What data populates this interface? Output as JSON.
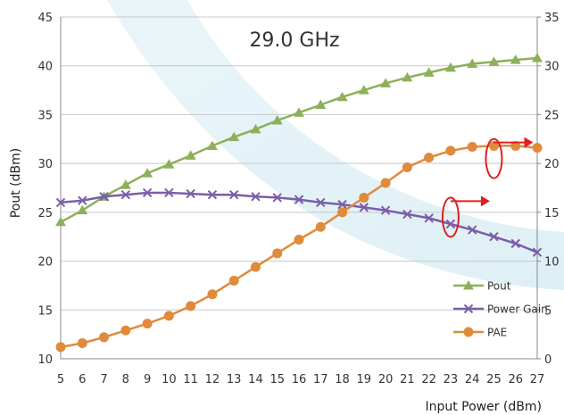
{
  "chart_data": {
    "type": "line",
    "title": "29.0 GHz",
    "xlabel": "Input Power (dBm)",
    "ylabel": "Pout (dBm)",
    "x": [
      5,
      6,
      7,
      8,
      9,
      10,
      11,
      12,
      13,
      14,
      15,
      16,
      17,
      18,
      19,
      20,
      21,
      22,
      23,
      24,
      25,
      26,
      27
    ],
    "xlim": [
      5,
      27
    ],
    "ylim": [
      10,
      45
    ],
    "y2lim": [
      0,
      35
    ],
    "yticks": [
      10,
      15,
      20,
      25,
      30,
      35,
      40,
      45
    ],
    "y2ticks": [
      0,
      5,
      10,
      15,
      20,
      25,
      30,
      35
    ],
    "y2_tick_labels": [
      "0",
      "5",
      "10",
      "15",
      "20",
      "25",
      "30",
      "35"
    ],
    "grid": true,
    "legend_position": "bottom-right",
    "series": [
      {
        "name": "Pout",
        "axis": "left",
        "color": "#8db05a",
        "marker": "triangle",
        "values": [
          24.0,
          25.2,
          26.6,
          27.8,
          29.0,
          29.9,
          30.8,
          31.8,
          32.7,
          33.5,
          34.4,
          35.2,
          36.0,
          36.8,
          37.5,
          38.2,
          38.8,
          39.3,
          39.8,
          40.2,
          40.4,
          40.6,
          40.8
        ]
      },
      {
        "name": "Power Gain",
        "axis": "left",
        "color": "#7b5ea7",
        "marker": "x",
        "values": [
          26.0,
          26.2,
          26.6,
          26.8,
          27.0,
          27.0,
          26.9,
          26.8,
          26.8,
          26.6,
          26.5,
          26.3,
          26.0,
          25.8,
          25.5,
          25.2,
          24.8,
          24.4,
          23.8,
          23.2,
          22.5,
          21.8,
          20.9
        ]
      },
      {
        "name": "PAE",
        "axis": "right",
        "color": "#e08a3c",
        "marker": "circle",
        "values": [
          1.2,
          1.6,
          2.2,
          2.9,
          3.6,
          4.4,
          5.4,
          6.6,
          8.0,
          9.4,
          10.8,
          12.2,
          13.5,
          15.0,
          16.5,
          18.0,
          19.6,
          20.6,
          21.3,
          21.7,
          21.8,
          21.8,
          21.6
        ]
      }
    ],
    "annotations": [
      {
        "type": "ellipse-arrow",
        "x": 25,
        "y": 30.5,
        "axis": "left",
        "direction": "right",
        "target_axis": "right"
      },
      {
        "type": "ellipse-arrow",
        "x": 23,
        "y": 24.5,
        "axis": "left",
        "direction": "right",
        "target_axis": "right"
      }
    ]
  }
}
